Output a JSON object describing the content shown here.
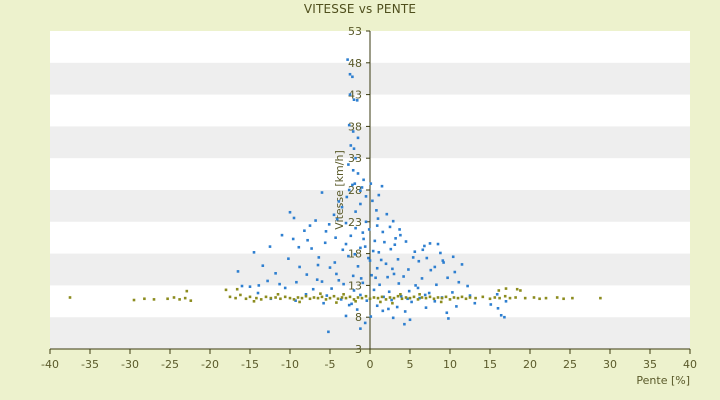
{
  "chart_data": {
    "type": "scatter",
    "title": "VITESSE vs PENTE",
    "xlabel": "Pente [%]",
    "ylabel": "Vitesse [km/h]",
    "xlim": [
      -40,
      40
    ],
    "ylim": [
      3,
      53
    ],
    "xticks": [
      "-40",
      "-35",
      "-30",
      "-25",
      "-20",
      "-15",
      "-10",
      "-5",
      "0",
      "5",
      "10",
      "15",
      "20",
      "25",
      "30",
      "35",
      "40"
    ],
    "yticks": [
      "3",
      "8",
      "13",
      "18",
      "23",
      "28",
      "33",
      "38",
      "43",
      "48",
      "53"
    ],
    "grid": "alternating horizontal bands",
    "legend": "none",
    "colors": {
      "series_blue": "#2e7fd0",
      "series_olive": "#8c8c1e",
      "axis": "#3a3a10",
      "band": "#eeeeee"
    },
    "series": [
      {
        "color": "#2e7fd0",
        "points": [
          [
            -2.8,
            48.5
          ],
          [
            -2.5,
            46.2
          ],
          [
            -2.2,
            45.8
          ],
          [
            -2.5,
            43
          ],
          [
            -2.0,
            42.2
          ],
          [
            -1.6,
            42.1
          ],
          [
            -2.6,
            38.2
          ],
          [
            -2.1,
            37.2
          ],
          [
            -1.5,
            36.2
          ],
          [
            -2.4,
            35
          ],
          [
            -2.0,
            34.5
          ],
          [
            -1.8,
            33
          ],
          [
            -2.7,
            32
          ],
          [
            -2.1,
            31.1
          ],
          [
            -1.5,
            30.6
          ],
          [
            -0.8,
            29.6
          ],
          [
            -1.9,
            29
          ],
          [
            -1.0,
            28.4
          ],
          [
            -6.0,
            27.6
          ],
          [
            1.5,
            28.6
          ],
          [
            -2.6,
            28
          ],
          [
            -0.5,
            27
          ],
          [
            0.3,
            26.3
          ],
          [
            -1.2,
            25.8
          ],
          [
            -3.5,
            25.3
          ],
          [
            -1.8,
            24.6
          ],
          [
            0.8,
            24.8
          ],
          [
            2.1,
            24.2
          ],
          [
            -10.0,
            24.5
          ],
          [
            -9.5,
            23.6
          ],
          [
            -6.8,
            23.2
          ],
          [
            -4.1,
            23.4
          ],
          [
            -3.0,
            22.8
          ],
          [
            -0.5,
            23
          ],
          [
            0.9,
            22.4
          ],
          [
            2.5,
            22.2
          ],
          [
            3.7,
            21.8
          ],
          [
            -1.8,
            22
          ],
          [
            1.6,
            21.4
          ],
          [
            -5.5,
            21.5
          ],
          [
            -8.2,
            21.6
          ],
          [
            -11.0,
            20.9
          ],
          [
            -9.6,
            20.3
          ],
          [
            -4.3,
            20.5
          ],
          [
            -2.4,
            20.8
          ],
          [
            -0.8,
            20.3
          ],
          [
            0.6,
            20
          ],
          [
            1.8,
            19.8
          ],
          [
            3.2,
            20.4
          ],
          [
            4.5,
            19.9
          ],
          [
            6.8,
            19.2
          ],
          [
            7.5,
            19.6
          ],
          [
            8.5,
            19.5
          ],
          [
            -12.5,
            19.1
          ],
          [
            -7.3,
            18.8
          ],
          [
            -3.4,
            18.6
          ],
          [
            -1.2,
            18.9
          ],
          [
            0.4,
            18.4
          ],
          [
            2.6,
            18.7
          ],
          [
            5.6,
            18.3
          ],
          [
            8.8,
            18.1
          ],
          [
            10.4,
            17.5
          ],
          [
            -14.5,
            18.2
          ],
          [
            -10.2,
            17.2
          ],
          [
            -6.4,
            17.4
          ],
          [
            -2.7,
            17.6
          ],
          [
            -0.2,
            17.3
          ],
          [
            1.4,
            17.0
          ],
          [
            3.5,
            17.1
          ],
          [
            6.1,
            16.8
          ],
          [
            9.2,
            16.6
          ],
          [
            11.5,
            16.3
          ],
          [
            -13.4,
            16.1
          ],
          [
            -8.8,
            15.9
          ],
          [
            -5.0,
            15.8
          ],
          [
            -1.5,
            16.0
          ],
          [
            0.9,
            15.7
          ],
          [
            2.8,
            15.6
          ],
          [
            4.8,
            15.5
          ],
          [
            7.6,
            15.4
          ],
          [
            -16.5,
            15.2
          ],
          [
            -11.8,
            14.9
          ],
          [
            -7.9,
            14.7
          ],
          [
            -4.2,
            14.8
          ],
          [
            -2.1,
            14.5
          ],
          [
            0.2,
            14.6
          ],
          [
            2.2,
            14.3
          ],
          [
            4.2,
            14.4
          ],
          [
            6.5,
            14.1
          ],
          [
            9.7,
            14.2
          ],
          [
            -12.8,
            13.7
          ],
          [
            -9.2,
            13.5
          ],
          [
            -6.0,
            13.6
          ],
          [
            -3.3,
            13.2
          ],
          [
            -0.9,
            13.4
          ],
          [
            1.2,
            13.1
          ],
          [
            3.6,
            13.3
          ],
          [
            5.7,
            13.0
          ],
          [
            8.3,
            13.1
          ],
          [
            12.2,
            12.9
          ],
          [
            -15.0,
            12.8
          ],
          [
            -10.6,
            12.6
          ],
          [
            -7.1,
            12.4
          ],
          [
            -4.8,
            12.5
          ],
          [
            -2.0,
            12.2
          ],
          [
            0.5,
            12.3
          ],
          [
            2.4,
            12.0
          ],
          [
            4.9,
            12.1
          ],
          [
            7.4,
            11.8
          ],
          [
            10.3,
            11.9
          ],
          [
            15.9,
            11.6
          ],
          [
            -8.0,
            11.6
          ],
          [
            -5.4,
            11.4
          ],
          [
            -1.2,
            11.5
          ],
          [
            1.7,
            11.2
          ],
          [
            3.9,
            11.3
          ],
          [
            6.2,
            11.0
          ],
          [
            9.0,
            11.1
          ],
          [
            -3.6,
            10.8
          ],
          [
            -0.4,
            10.6
          ],
          [
            2.7,
            10.7
          ],
          [
            5.2,
            10.4
          ],
          [
            8.1,
            10.5
          ],
          [
            13.1,
            10.2
          ],
          [
            15.1,
            10.0
          ],
          [
            -5.8,
            10.2
          ],
          [
            -2.6,
            9.9
          ],
          [
            0.9,
            9.8
          ],
          [
            3.4,
            9.6
          ],
          [
            7.0,
            9.5
          ],
          [
            10.8,
            9.7
          ],
          [
            16.0,
            9.4
          ],
          [
            -1.6,
            9.2
          ],
          [
            1.6,
            9.0
          ],
          [
            4.4,
            8.9
          ],
          [
            9.6,
            8.7
          ],
          [
            16.4,
            8.3
          ],
          [
            -3.0,
            8.2
          ],
          [
            0.1,
            8.1
          ],
          [
            2.9,
            7.9
          ],
          [
            5.0,
            7.6
          ],
          [
            9.8,
            7.8
          ],
          [
            16.8,
            8.0
          ],
          [
            -0.6,
            7.1
          ],
          [
            4.3,
            6.9
          ],
          [
            -1.2,
            6.2
          ],
          [
            -5.2,
            5.7
          ],
          [
            -2.2,
            28.8
          ],
          [
            -1.2,
            27.9
          ],
          [
            0.1,
            29.0
          ],
          [
            1.1,
            27.2
          ],
          [
            -2.9,
            26.9
          ],
          [
            -3.9,
            26.2
          ],
          [
            -4.5,
            24.1
          ],
          [
            -5.1,
            22.6
          ],
          [
            1.0,
            23.5
          ],
          [
            2.9,
            23.1
          ],
          [
            3.8,
            20.9
          ],
          [
            -0.1,
            21.8
          ],
          [
            -0.9,
            21.3
          ],
          [
            -3.0,
            19.5
          ],
          [
            -5.6,
            19.7
          ],
          [
            -7.8,
            20.1
          ],
          [
            -1.9,
            17.9
          ],
          [
            2.0,
            16.4
          ],
          [
            0.0,
            16.9
          ],
          [
            -4.4,
            16.6
          ],
          [
            -6.5,
            16.2
          ],
          [
            5.4,
            17.4
          ],
          [
            7.1,
            17.3
          ],
          [
            8.1,
            15.9
          ],
          [
            3.0,
            14.8
          ],
          [
            -3.9,
            13.8
          ],
          [
            -6.6,
            13.9
          ],
          [
            11.1,
            13.5
          ],
          [
            6.0,
            12.6
          ],
          [
            -9.3,
            10.6
          ],
          [
            -12.4,
            10.9
          ],
          [
            -8.9,
            19.0
          ],
          [
            -7.5,
            22.4
          ],
          [
            6.6,
            18.6
          ],
          [
            9.1,
            16.9
          ],
          [
            10.6,
            15.1
          ],
          [
            -13.9,
            13.0
          ],
          [
            -11.3,
            13.2
          ],
          [
            3.1,
            19.4
          ],
          [
            -0.6,
            19.1
          ],
          [
            1.1,
            18.2
          ],
          [
            -1.1,
            14.1
          ],
          [
            0.7,
            14.2
          ],
          [
            2.3,
            9.3
          ],
          [
            -2.3,
            10.1
          ],
          [
            4.7,
            10.9
          ],
          [
            6.9,
            11.5
          ],
          [
            -14.0,
            11.8
          ],
          [
            -16.0,
            12.9
          ],
          [
            17.0,
            10.5
          ],
          [
            12.5,
            11.4
          ]
        ]
      },
      {
        "color": "#8c8c1e",
        "points": [
          [
            -37.5,
            11.1
          ],
          [
            -29.5,
            10.7
          ],
          [
            -28.2,
            10.9
          ],
          [
            -27.0,
            10.8
          ],
          [
            -25.3,
            10.9
          ],
          [
            -24.5,
            11.1
          ],
          [
            -23.8,
            10.8
          ],
          [
            -23.1,
            11.0
          ],
          [
            -22.4,
            10.6
          ],
          [
            -22.9,
            12.1
          ],
          [
            -18.0,
            12.3
          ],
          [
            -17.5,
            11.2
          ],
          [
            -16.8,
            11.0
          ],
          [
            -16.2,
            11.5
          ],
          [
            -15.5,
            10.9
          ],
          [
            -15.0,
            11.2
          ],
          [
            -14.2,
            11.0
          ],
          [
            -13.6,
            10.8
          ],
          [
            -13.0,
            11.2
          ],
          [
            -12.4,
            11.0
          ],
          [
            -11.8,
            11.1
          ],
          [
            -11.2,
            10.9
          ],
          [
            -10.6,
            11.2
          ],
          [
            -10.0,
            11.0
          ],
          [
            -9.5,
            10.8
          ],
          [
            -9.0,
            11.1
          ],
          [
            -8.5,
            11.0
          ],
          [
            -8.0,
            11.3
          ],
          [
            -7.5,
            10.9
          ],
          [
            -7.0,
            11.1
          ],
          [
            -6.5,
            11.0
          ],
          [
            -6.0,
            11.2
          ],
          [
            -5.5,
            10.8
          ],
          [
            -5.0,
            11.0
          ],
          [
            -4.5,
            11.3
          ],
          [
            -4.0,
            10.9
          ],
          [
            -3.5,
            11.1
          ],
          [
            -3.0,
            11.0
          ],
          [
            -2.5,
            11.2
          ],
          [
            -2.0,
            10.8
          ],
          [
            -1.5,
            11.1
          ],
          [
            -1.0,
            11.0
          ],
          [
            -0.5,
            11.3
          ],
          [
            0.0,
            10.9
          ],
          [
            0.5,
            11.1
          ],
          [
            1.0,
            11.0
          ],
          [
            1.5,
            11.2
          ],
          [
            2.0,
            10.8
          ],
          [
            2.5,
            11.1
          ],
          [
            3.0,
            11.0
          ],
          [
            3.5,
            11.3
          ],
          [
            4.0,
            10.9
          ],
          [
            4.5,
            11.1
          ],
          [
            5.0,
            11.0
          ],
          [
            5.5,
            11.2
          ],
          [
            6.0,
            10.8
          ],
          [
            6.5,
            11.1
          ],
          [
            7.0,
            11.0
          ],
          [
            7.5,
            11.2
          ],
          [
            8.0,
            10.9
          ],
          [
            8.5,
            11.1
          ],
          [
            9.0,
            11.0
          ],
          [
            9.5,
            11.2
          ],
          [
            10.0,
            10.8
          ],
          [
            10.5,
            11.1
          ],
          [
            11.0,
            11.0
          ],
          [
            11.5,
            11.2
          ],
          [
            12.0,
            10.9
          ],
          [
            12.5,
            11.1
          ],
          [
            13.2,
            11.0
          ],
          [
            14.1,
            11.2
          ],
          [
            15.0,
            10.9
          ],
          [
            15.6,
            11.1
          ],
          [
            16.2,
            11.0
          ],
          [
            16.9,
            11.3
          ],
          [
            17.5,
            11.0
          ],
          [
            18.2,
            11.1
          ],
          [
            18.8,
            12.2
          ],
          [
            19.4,
            11.0
          ],
          [
            20.5,
            11.1
          ],
          [
            21.2,
            10.9
          ],
          [
            22.0,
            11.0
          ],
          [
            23.4,
            11.1
          ],
          [
            24.2,
            10.9
          ],
          [
            25.3,
            11.0
          ],
          [
            28.8,
            11.0
          ],
          [
            16.1,
            12.2
          ],
          [
            17.0,
            12.5
          ],
          [
            18.4,
            12.4
          ],
          [
            -6.2,
            11.7
          ],
          [
            -3.3,
            11.6
          ],
          [
            -1.8,
            10.5
          ],
          [
            1.3,
            10.4
          ],
          [
            3.8,
            11.6
          ],
          [
            6.2,
            11.6
          ],
          [
            8.9,
            10.4
          ],
          [
            -8.8,
            10.4
          ],
          [
            -11.5,
            11.6
          ],
          [
            -14.5,
            10.5
          ],
          [
            -16.6,
            12.4
          ],
          [
            2.8,
            10.2
          ],
          [
            -4.2,
            10.3
          ]
        ]
      }
    ]
  }
}
